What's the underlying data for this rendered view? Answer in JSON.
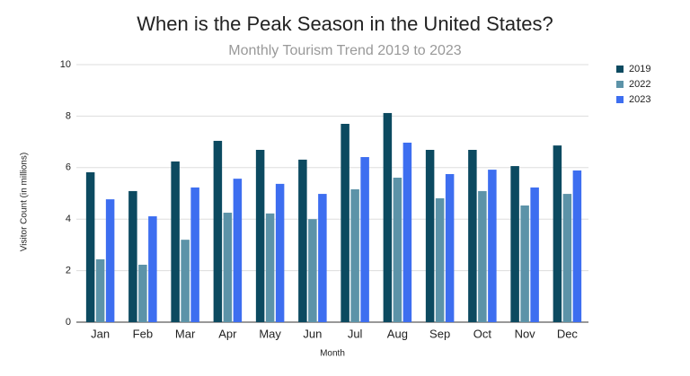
{
  "chart_data": {
    "type": "bar",
    "title": "When is the Peak Season in the United States?",
    "subtitle": "Monthly Tourism Trend 2019 to 2023",
    "x_label": "Month",
    "y_label": "Visitor Count (in millions)",
    "categories": [
      "Jan",
      "Feb",
      "Mar",
      "Apr",
      "May",
      "Jun",
      "Jul",
      "Aug",
      "Sep",
      "Oct",
      "Nov",
      "Dec"
    ],
    "series": [
      {
        "name": "2019",
        "color": "#0c4a60",
        "values": [
          5.82,
          5.09,
          6.24,
          7.04,
          6.69,
          6.31,
          7.7,
          8.12,
          6.69,
          6.69,
          6.06,
          6.86
        ]
      },
      {
        "name": "2022",
        "color": "#5c93a8",
        "values": [
          2.44,
          2.23,
          3.2,
          4.25,
          4.22,
          4.0,
          5.16,
          5.61,
          4.81,
          5.09,
          4.53,
          4.98
        ]
      },
      {
        "name": "2023",
        "color": "#3d6ef0",
        "values": [
          4.77,
          4.11,
          5.23,
          5.57,
          5.37,
          4.98,
          6.41,
          6.97,
          5.75,
          5.92,
          5.23,
          5.89
        ]
      }
    ],
    "ylim": [
      0,
      10
    ],
    "yticks": [
      0,
      2,
      4,
      6,
      8,
      10
    ],
    "grid": true,
    "legend": "right"
  }
}
